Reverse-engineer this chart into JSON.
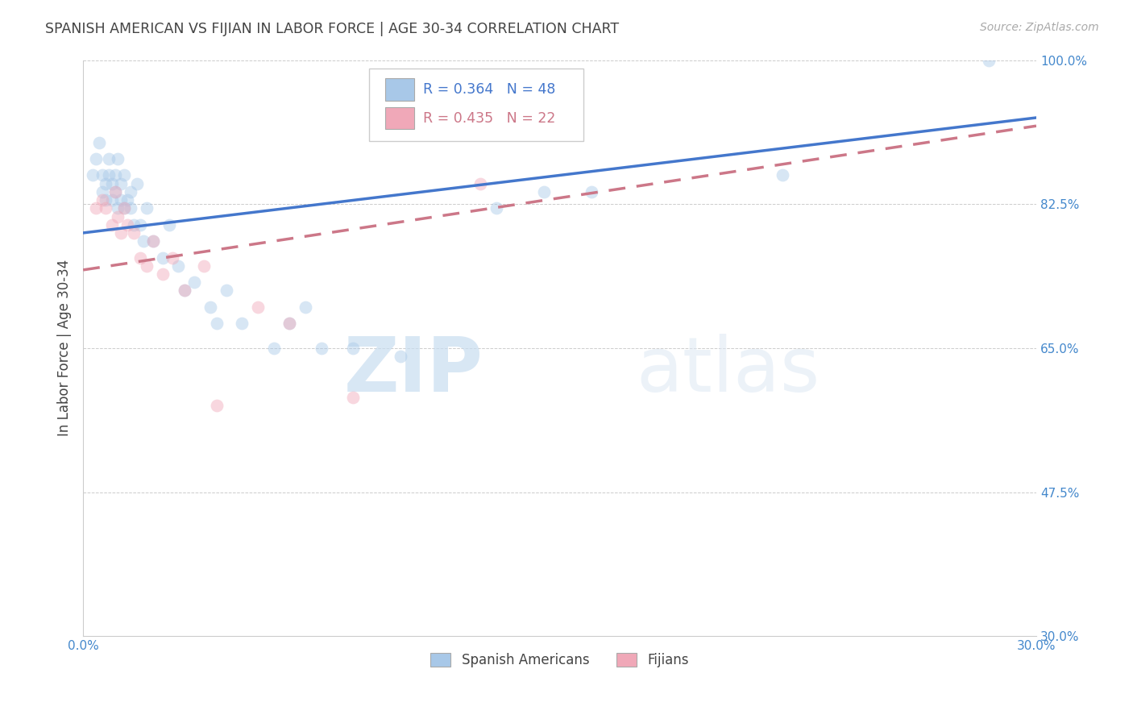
{
  "title": "SPANISH AMERICAN VS FIJIAN IN LABOR FORCE | AGE 30-34 CORRELATION CHART",
  "source": "Source: ZipAtlas.com",
  "ylabel": "In Labor Force | Age 30-34",
  "xlim": [
    0.0,
    0.3
  ],
  "ylim": [
    0.3,
    1.0
  ],
  "y_ticks": [
    0.3,
    0.475,
    0.65,
    0.825,
    1.0
  ],
  "y_tick_labels": [
    "30.0%",
    "47.5%",
    "65.0%",
    "82.5%",
    "100.0%"
  ],
  "grid_color": "#cccccc",
  "background_color": "#ffffff",
  "watermark_zip": "ZIP",
  "watermark_atlas": "atlas",
  "legend_R_blue": "R = 0.364",
  "legend_N_blue": "N = 48",
  "legend_R_pink": "R = 0.435",
  "legend_N_pink": "N = 22",
  "blue_color": "#a8c8e8",
  "pink_color": "#f0a8b8",
  "line_blue": "#4477cc",
  "line_pink": "#cc7788",
  "label_blue": "Spanish Americans",
  "label_pink": "Fijians",
  "title_color": "#444444",
  "axis_label_color": "#444444",
  "tick_color": "#4488cc",
  "blue_scatter_x": [
    0.003,
    0.004,
    0.005,
    0.006,
    0.006,
    0.007,
    0.007,
    0.008,
    0.008,
    0.009,
    0.009,
    0.01,
    0.01,
    0.011,
    0.011,
    0.012,
    0.012,
    0.013,
    0.013,
    0.014,
    0.015,
    0.015,
    0.016,
    0.017,
    0.018,
    0.019,
    0.02,
    0.022,
    0.025,
    0.027,
    0.03,
    0.032,
    0.035,
    0.04,
    0.042,
    0.045,
    0.05,
    0.06,
    0.065,
    0.07,
    0.075,
    0.085,
    0.1,
    0.13,
    0.145,
    0.16,
    0.22,
    0.285
  ],
  "blue_scatter_y": [
    0.86,
    0.88,
    0.9,
    0.84,
    0.86,
    0.83,
    0.85,
    0.86,
    0.88,
    0.83,
    0.85,
    0.86,
    0.84,
    0.82,
    0.88,
    0.83,
    0.85,
    0.82,
    0.86,
    0.83,
    0.84,
    0.82,
    0.8,
    0.85,
    0.8,
    0.78,
    0.82,
    0.78,
    0.76,
    0.8,
    0.75,
    0.72,
    0.73,
    0.7,
    0.68,
    0.72,
    0.68,
    0.65,
    0.68,
    0.7,
    0.65,
    0.65,
    0.64,
    0.82,
    0.84,
    0.84,
    0.86,
    1.0
  ],
  "pink_scatter_x": [
    0.004,
    0.006,
    0.007,
    0.009,
    0.01,
    0.011,
    0.012,
    0.013,
    0.014,
    0.016,
    0.018,
    0.02,
    0.022,
    0.025,
    0.028,
    0.032,
    0.038,
    0.042,
    0.055,
    0.065,
    0.085,
    0.125
  ],
  "pink_scatter_y": [
    0.82,
    0.83,
    0.82,
    0.8,
    0.84,
    0.81,
    0.79,
    0.82,
    0.8,
    0.79,
    0.76,
    0.75,
    0.78,
    0.74,
    0.76,
    0.72,
    0.75,
    0.58,
    0.7,
    0.68,
    0.59,
    0.85
  ],
  "marker_size": 130,
  "marker_alpha": 0.45
}
